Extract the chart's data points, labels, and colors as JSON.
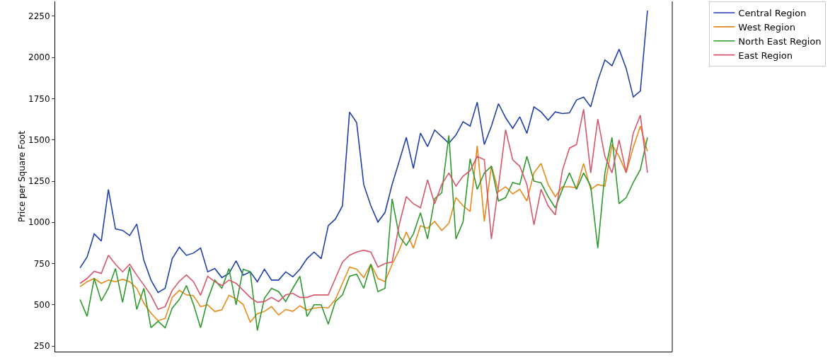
{
  "chart_data": {
    "type": "line",
    "ylabel": "Price per Square Foot",
    "categories": [
      null,
      null,
      null,
      null,
      null,
      null,
      null,
      null,
      null,
      null,
      null,
      null,
      null,
      null,
      null,
      null,
      null,
      null,
      null,
      null,
      null,
      null,
      null,
      null,
      null,
      null,
      null,
      null,
      null,
      null,
      null,
      null,
      null,
      null,
      null,
      null,
      null,
      null,
      null,
      null,
      null,
      null,
      null,
      null,
      null,
      null,
      null,
      null,
      null,
      null,
      null,
      null,
      null,
      null,
      null,
      null,
      null,
      null,
      null,
      null,
      null,
      null,
      null,
      null,
      null,
      null,
      null,
      null,
      null,
      null,
      null,
      null,
      null,
      null,
      null,
      null,
      null,
      null,
      null,
      null,
      null
    ],
    "ylim": [
      216,
      2340
    ],
    "yticks": [
      250,
      500,
      750,
      1000,
      1250,
      1500,
      1750,
      2000,
      2250
    ],
    "tick_labels": "y",
    "grid": false,
    "legend": "top right",
    "marker": "none",
    "line_style": "solid",
    "series": [
      {
        "name": "Central Region",
        "color": "#2040a8",
        "values": [
          724,
          790,
          930,
          887,
          1199,
          960,
          951,
          920,
          990,
          770,
          650,
          575,
          600,
          780,
          850,
          800,
          814,
          844,
          700,
          720,
          665,
          690,
          767,
          680,
          700,
          640,
          716,
          650,
          650,
          700,
          670,
          716,
          780,
          820,
          780,
          980,
          1020,
          1100,
          1669,
          1605,
          1229,
          1101,
          1002,
          1060,
          1230,
          1370,
          1515,
          1327,
          1541,
          1460,
          1560,
          1520,
          1480,
          1530,
          1610,
          1584,
          1729,
          1472,
          1584,
          1720,
          1635,
          1570,
          1640,
          1540,
          1700,
          1670,
          1620,
          1670,
          1660,
          1664,
          1742,
          1760,
          1700,
          1860,
          1985,
          1950,
          2050,
          1934,
          1760,
          1797,
          2284
        ]
      },
      {
        "name": "West Region",
        "color": "#e8891a",
        "values": [
          609,
          640,
          660,
          630,
          650,
          640,
          655,
          640,
          600,
          510,
          450,
          404,
          417,
          545,
          588,
          560,
          555,
          489,
          500,
          459,
          470,
          558,
          536,
          502,
          395,
          446,
          460,
          489,
          438,
          472,
          460,
          494,
          468,
          480,
          485,
          481,
          532,
          630,
          729,
          716,
          665,
          746,
          660,
          640,
          746,
          831,
          942,
          844,
          980,
          964,
          1006,
          951,
          994,
          1150,
          1101,
          1066,
          1464,
          1006,
          1344,
          1186,
          1216,
          1173,
          1200,
          1130,
          1300,
          1357,
          1229,
          1156,
          1216,
          1216,
          1210,
          1357,
          1200,
          1229,
          1220,
          1472,
          1400,
          1301,
          1455,
          1584,
          1430
        ]
      },
      {
        "name": "North East Region",
        "color": "#2e9a2e",
        "values": [
          532,
          430,
          660,
          523,
          600,
          720,
          515,
          729,
          472,
          600,
          361,
          400,
          360,
          480,
          532,
          617,
          502,
          361,
          532,
          650,
          600,
          720,
          500,
          716,
          700,
          344,
          540,
          600,
          580,
          520,
          600,
          673,
          429,
          500,
          500,
          382,
          520,
          560,
          673,
          686,
          600,
          746,
          580,
          600,
          1143,
          917,
          860,
          930,
          1058,
          900,
          1143,
          1180,
          1528,
          900,
          1002,
          1386,
          1200,
          1300,
          1340,
          1130,
          1150,
          1242,
          1230,
          1400,
          1250,
          1240,
          1156,
          1088,
          1199,
          1300,
          1200,
          1300,
          1220,
          844,
          1300,
          1515,
          1113,
          1150,
          1242,
          1320,
          1515
        ]
      },
      {
        "name": "East Region",
        "color": "#d6566a",
        "values": [
          630,
          660,
          703,
          690,
          801,
          746,
          700,
          746,
          680,
          620,
          558,
          472,
          489,
          588,
          643,
          681,
          640,
          558,
          673,
          640,
          617,
          650,
          630,
          588,
          545,
          515,
          520,
          545,
          520,
          560,
          570,
          545,
          545,
          560,
          560,
          560,
          660,
          759,
          801,
          820,
          831,
          820,
          729,
          750,
          760,
          985,
          1156,
          1113,
          1088,
          1258,
          1113,
          1230,
          1300,
          1220,
          1280,
          1314,
          1400,
          1380,
          900,
          1220,
          1562,
          1380,
          1340,
          1230,
          985,
          1200,
          1100,
          1045,
          1314,
          1450,
          1472,
          1686,
          1300,
          1626,
          1400,
          1300,
          1500,
          1301,
          1541,
          1650,
          1301
        ]
      }
    ]
  }
}
